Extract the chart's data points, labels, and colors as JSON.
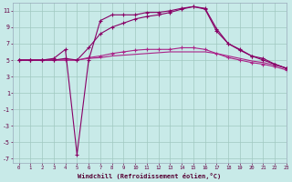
{
  "xlabel": "Windchill (Refroidissement éolien,°C)",
  "background_color": "#c8eae8",
  "grid_color": "#a0c8c0",
  "line_dark": "#880066",
  "line_mid": "#aa2288",
  "xlim": [
    -0.5,
    23
  ],
  "ylim": [
    -7.5,
    12
  ],
  "yticks": [
    -7,
    -5,
    -3,
    -1,
    1,
    3,
    5,
    7,
    9,
    11
  ],
  "xticks": [
    0,
    1,
    2,
    3,
    4,
    5,
    6,
    7,
    8,
    9,
    10,
    11,
    12,
    13,
    14,
    15,
    16,
    17,
    18,
    19,
    20,
    21,
    22,
    23
  ],
  "hours": [
    0,
    1,
    2,
    3,
    4,
    5,
    6,
    7,
    8,
    9,
    10,
    11,
    12,
    13,
    14,
    15,
    16,
    17,
    18,
    19,
    20,
    21,
    22,
    23
  ],
  "line_spike": [
    5.0,
    5.0,
    5.0,
    5.2,
    6.3,
    -6.5,
    5.0,
    9.8,
    10.5,
    10.5,
    10.5,
    10.8,
    10.8,
    11.0,
    11.3,
    11.5,
    11.2,
    8.5,
    7.0,
    6.2,
    5.5,
    5.0,
    4.5,
    4.0
  ],
  "line_arc": [
    5.0,
    5.0,
    5.0,
    5.0,
    5.2,
    5.0,
    6.5,
    8.2,
    9.0,
    9.5,
    10.0,
    10.3,
    10.5,
    10.8,
    11.2,
    11.5,
    11.3,
    8.8,
    7.0,
    6.3,
    5.5,
    5.2,
    4.5,
    4.0
  ],
  "line_flat": [
    5.0,
    5.0,
    5.0,
    5.0,
    5.0,
    5.0,
    5.2,
    5.3,
    5.5,
    5.6,
    5.7,
    5.8,
    5.9,
    6.0,
    6.0,
    6.0,
    6.0,
    5.8,
    5.5,
    5.2,
    4.9,
    4.7,
    4.4,
    4.0
  ],
  "line_lower": [
    5.0,
    5.0,
    5.0,
    5.0,
    5.0,
    5.0,
    5.3,
    5.5,
    5.8,
    6.0,
    6.2,
    6.3,
    6.3,
    6.3,
    6.5,
    6.5,
    6.3,
    5.8,
    5.3,
    5.0,
    4.7,
    4.5,
    4.2,
    3.8
  ]
}
